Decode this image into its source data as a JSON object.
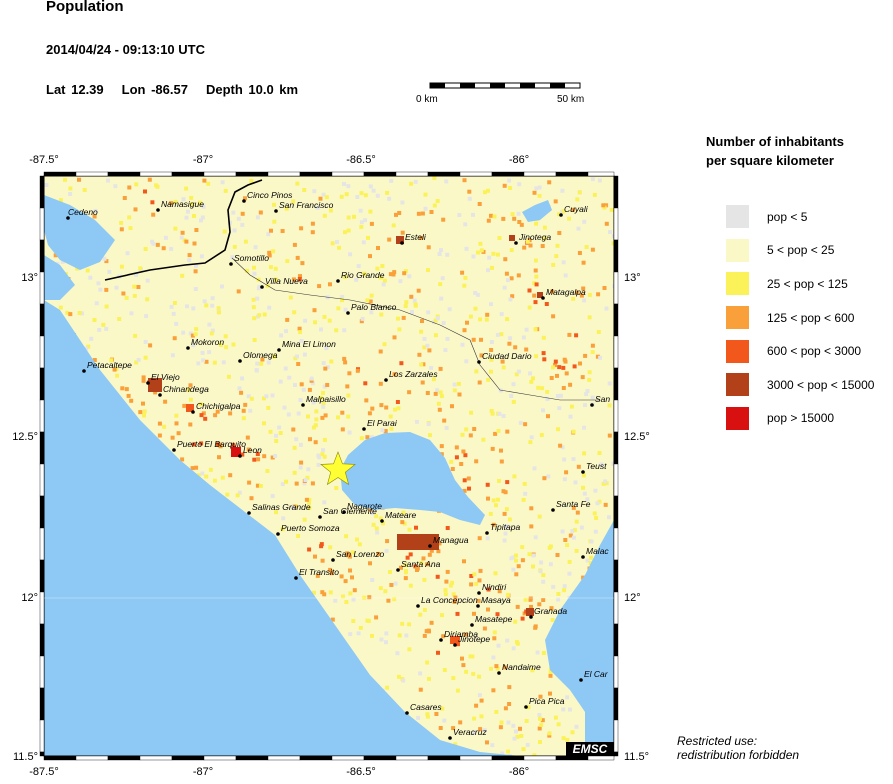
{
  "header": {
    "title": "Population",
    "datetime": "2014/04/24 - 09:13:10 UTC",
    "lat": "Lat 12.39",
    "lon": "Lon -86.57",
    "depth": "Depth  10.0 km"
  },
  "scale": {
    "left_label": "0 km",
    "right_label": "50 km"
  },
  "axes": {
    "top_ticks": [
      "-87.5°",
      "-87°",
      "-86.5°",
      "-86°"
    ],
    "bottom_ticks": [
      "-87.5°",
      "-87°",
      "-86.5°",
      "-86°"
    ],
    "left_ticks": [
      "13°",
      "12.5°",
      "12°",
      "11.5°"
    ],
    "right_ticks": [
      "13°",
      "12.5°",
      "12°",
      "11.5°"
    ]
  },
  "legend": {
    "title_line1": "Number of inhabitants",
    "title_line2": "per square kilometer",
    "items": [
      {
        "label": "pop < 5",
        "color": "#e5e5e5"
      },
      {
        "label": "5 < pop < 25",
        "color": "#fbf8c8"
      },
      {
        "label": "25 < pop < 125",
        "color": "#fbf25a"
      },
      {
        "label": "125 < pop < 600",
        "color": "#f9a03a"
      },
      {
        "label": "600 < pop < 3000",
        "color": "#f2581c"
      },
      {
        "label": "3000 < pop < 15000",
        "color": "#b24018"
      },
      {
        "label": "pop > 15000",
        "color": "#d81010"
      }
    ]
  },
  "map": {
    "water_color": "#8ec8f5",
    "land_color": "#fbf8c8",
    "epicenter_color": "#ffff33",
    "logo": "EMSC",
    "cities": [
      {
        "name": "Cedeno"
      },
      {
        "name": "Namasigue"
      },
      {
        "name": "Cinco Pinos"
      },
      {
        "name": "San Francisco"
      },
      {
        "name": "Cuyali"
      },
      {
        "name": "Esteli"
      },
      {
        "name": "Jinotega"
      },
      {
        "name": "Somotillo"
      },
      {
        "name": "Villa Nueva"
      },
      {
        "name": "Rio Grande"
      },
      {
        "name": "Matagalpa"
      },
      {
        "name": "Palo Blanco"
      },
      {
        "name": "Mokoron"
      },
      {
        "name": "Mina El Limon"
      },
      {
        "name": "Olomega"
      },
      {
        "name": "Ciudad Dario"
      },
      {
        "name": "Petacaltepe"
      },
      {
        "name": "El Viejo"
      },
      {
        "name": "Los Zarzales"
      },
      {
        "name": "Chinandega"
      },
      {
        "name": "Chichigalpa"
      },
      {
        "name": "Malpaisillo"
      },
      {
        "name": "San"
      },
      {
        "name": "El Parai"
      },
      {
        "name": "Puerto El Barquito"
      },
      {
        "name": "Leon"
      },
      {
        "name": "Teust"
      },
      {
        "name": "Santa Fe"
      },
      {
        "name": "Salinas Grande"
      },
      {
        "name": "Nagarote"
      },
      {
        "name": "San Clemente"
      },
      {
        "name": "Mateare"
      },
      {
        "name": "Tipitapa"
      },
      {
        "name": "Puerto Somoza"
      },
      {
        "name": "Malac"
      },
      {
        "name": "Managua"
      },
      {
        "name": "San Lorenzo"
      },
      {
        "name": "Santa Ana"
      },
      {
        "name": "El Transito"
      },
      {
        "name": "Nindiri"
      },
      {
        "name": "La Concepcion"
      },
      {
        "name": "Masaya"
      },
      {
        "name": "Granada"
      },
      {
        "name": "Masatepe"
      },
      {
        "name": "Diriamba"
      },
      {
        "name": "Jinotepe"
      },
      {
        "name": "Nandaime"
      },
      {
        "name": "El Car"
      },
      {
        "name": "Pica Pica"
      },
      {
        "name": "Casares"
      },
      {
        "name": "Veracruz"
      }
    ]
  },
  "footer": {
    "line1": "Restricted use:",
    "line2": "redistribution forbidden"
  }
}
